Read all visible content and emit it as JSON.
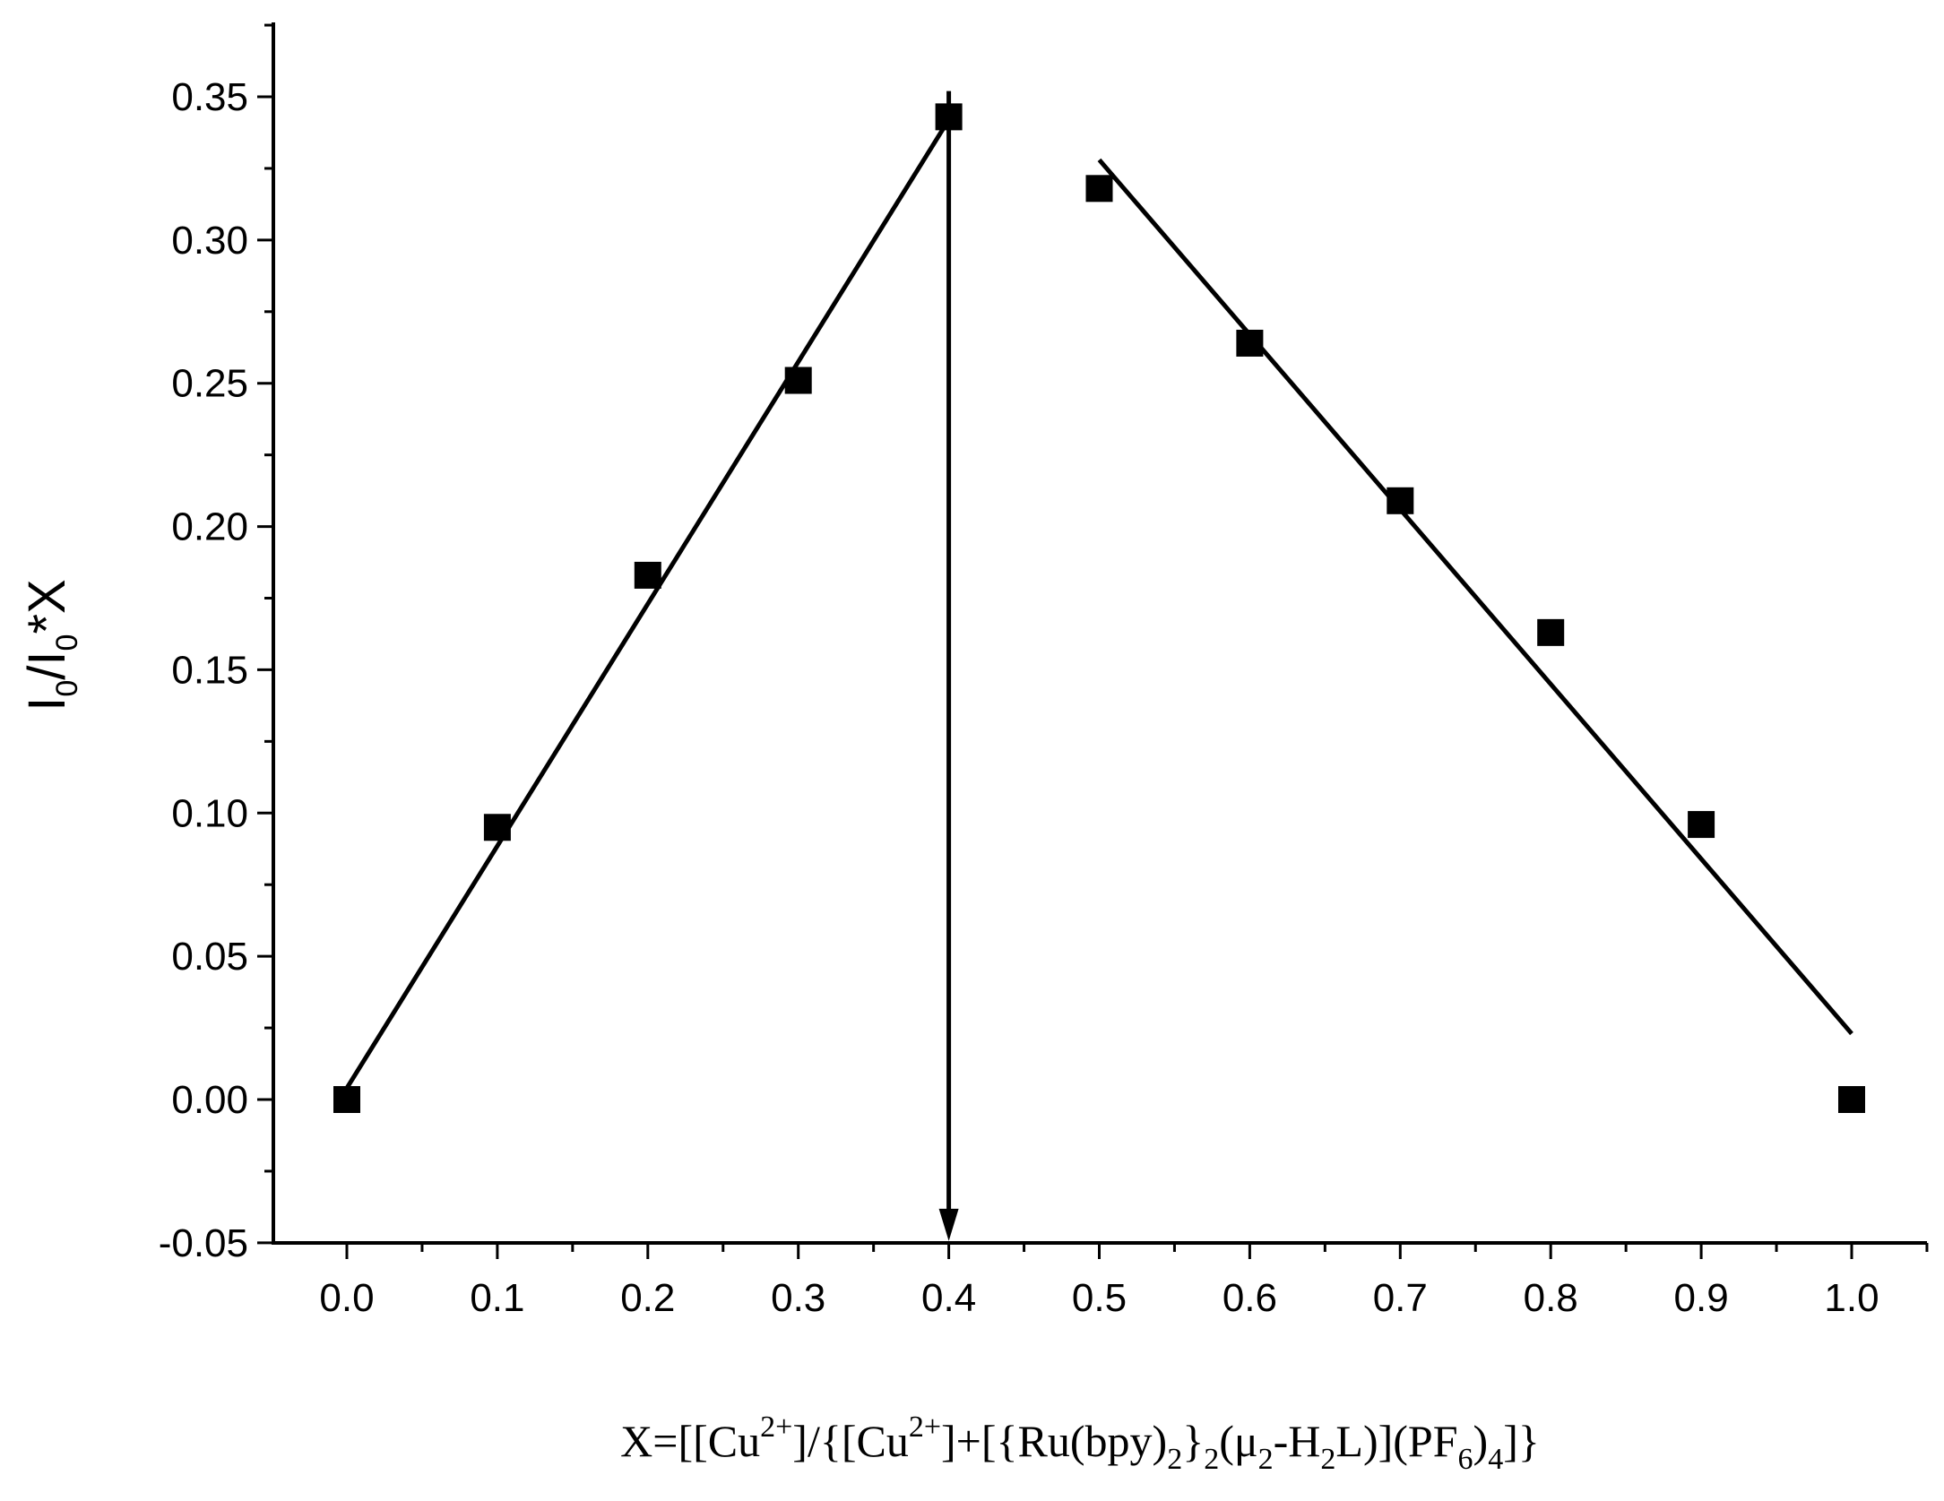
{
  "chart_data": {
    "type": "scatter",
    "title": "",
    "ylabel": {
      "base": "I",
      "sub1": "0",
      "mid": "/I",
      "sub2": "0",
      "tail": "*X"
    },
    "xlabel": {
      "p1": "X=[[Cu",
      "sup1": "2+",
      "p2": "]/{[Cu",
      "sup2": "2+",
      "p3": "]+[{Ru(bpy)",
      "sub1": "2",
      "p4": "}",
      "sub2": "2",
      "p5": "(μ",
      "sub3": "2",
      "p6": "-H",
      "sub4": "2",
      "p7": "L)](PF",
      "sub5": "6",
      "p8": ")",
      "sub6": "4",
      "p9": "]}"
    },
    "xlim": [
      -0.05,
      1.05
    ],
    "ylim": [
      -0.05,
      0.37
    ],
    "x_ticks": [
      0.0,
      0.1,
      0.2,
      0.3,
      0.4,
      0.5,
      0.6,
      0.7,
      0.8,
      0.9,
      1.0
    ],
    "x_tick_labels": [
      "0.0",
      "0.1",
      "0.2",
      "0.3",
      "0.4",
      "0.5",
      "0.6",
      "0.7",
      "0.8",
      "0.9",
      "1.0"
    ],
    "y_ticks": [
      -0.05,
      0.0,
      0.05,
      0.1,
      0.15,
      0.2,
      0.25,
      0.3,
      0.35
    ],
    "y_tick_labels": [
      "-0.05",
      "0.00",
      "0.05",
      "0.10",
      "0.15",
      "0.20",
      "0.25",
      "0.30",
      "0.35"
    ],
    "grid": false,
    "legend": "none",
    "marker": "filled-square",
    "color": "#000000",
    "points": [
      {
        "x": 0.0,
        "y": 0.0
      },
      {
        "x": 0.1,
        "y": 0.095
      },
      {
        "x": 0.2,
        "y": 0.183
      },
      {
        "x": 0.3,
        "y": 0.251
      },
      {
        "x": 0.4,
        "y": 0.343
      },
      {
        "x": 0.5,
        "y": 0.318
      },
      {
        "x": 0.6,
        "y": 0.264
      },
      {
        "x": 0.7,
        "y": 0.209
      },
      {
        "x": 0.8,
        "y": 0.163
      },
      {
        "x": 0.9,
        "y": 0.096
      },
      {
        "x": 1.0,
        "y": 0.0
      }
    ],
    "fit_lines": [
      {
        "x": [
          0.0,
          0.4
        ],
        "y": [
          0.004,
          0.342
        ]
      },
      {
        "x": [
          0.5,
          1.0
        ],
        "y": [
          0.328,
          0.023
        ]
      }
    ],
    "arrow": {
      "x": 0.4,
      "y_from": 0.352,
      "y_to": -0.05
    }
  }
}
